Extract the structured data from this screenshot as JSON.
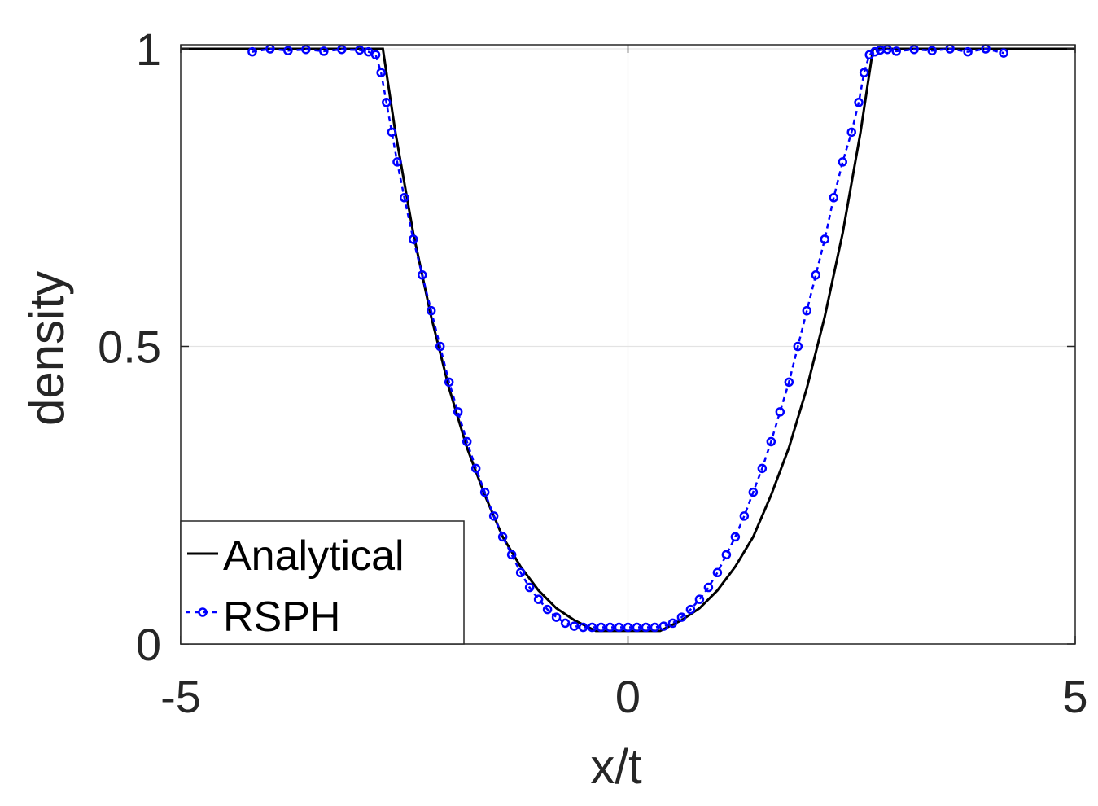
{
  "chart_data": {
    "type": "line",
    "xlabel": "x/t",
    "ylabel": "density",
    "xlim": [
      -5,
      5
    ],
    "ylim": [
      0,
      1
    ],
    "xticks": [
      "-5",
      "0",
      "5"
    ],
    "yticks": [
      "0",
      "0.5",
      "1"
    ],
    "grid": true,
    "legend_position": "bottom-left",
    "series": [
      {
        "name": "Analytical",
        "style": "solid",
        "color": "#000000",
        "x": [
          -5,
          -2.74,
          -2.6,
          -2.4,
          -2.2,
          -2.0,
          -1.8,
          -1.6,
          -1.4,
          -1.2,
          -1.0,
          -0.8,
          -0.6,
          -0.36,
          0.36,
          0.6,
          0.8,
          1.0,
          1.2,
          1.4,
          1.6,
          1.8,
          2.0,
          2.2,
          2.4,
          2.6,
          2.74,
          5
        ],
        "y": [
          1,
          1,
          0.86,
          0.69,
          0.55,
          0.43,
          0.33,
          0.25,
          0.18,
          0.13,
          0.09,
          0.06,
          0.04,
          0.022,
          0.022,
          0.04,
          0.06,
          0.09,
          0.13,
          0.18,
          0.25,
          0.33,
          0.43,
          0.55,
          0.69,
          0.86,
          1,
          1
        ]
      },
      {
        "name": "RSPH",
        "style": "dashed-markers",
        "color": "#0000ff",
        "x": [
          -4.2,
          -4.0,
          -3.8,
          -3.6,
          -3.4,
          -3.2,
          -3.0,
          -2.9,
          -2.82,
          -2.76,
          -2.7,
          -2.64,
          -2.58,
          -2.5,
          -2.4,
          -2.3,
          -2.2,
          -2.1,
          -2.0,
          -1.9,
          -1.8,
          -1.7,
          -1.6,
          -1.5,
          -1.4,
          -1.3,
          -1.2,
          -1.1,
          -1.0,
          -0.9,
          -0.8,
          -0.7,
          -0.6,
          -0.5,
          -0.4,
          -0.3,
          -0.2,
          -0.1,
          0.0,
          0.1,
          0.2,
          0.3,
          0.4,
          0.5,
          0.6,
          0.7,
          0.8,
          0.9,
          1.0,
          1.1,
          1.2,
          1.3,
          1.4,
          1.5,
          1.6,
          1.7,
          1.8,
          1.9,
          2.0,
          2.1,
          2.2,
          2.3,
          2.4,
          2.5,
          2.58,
          2.64,
          2.7,
          2.76,
          2.82,
          2.9,
          3.0,
          3.2,
          3.4,
          3.6,
          3.8,
          4.0,
          4.2
        ],
        "y": [
          0.995,
          1.0,
          0.997,
          0.999,
          0.996,
          0.999,
          0.998,
          0.995,
          0.99,
          0.96,
          0.91,
          0.86,
          0.81,
          0.75,
          0.68,
          0.62,
          0.56,
          0.5,
          0.44,
          0.39,
          0.34,
          0.295,
          0.255,
          0.215,
          0.18,
          0.15,
          0.12,
          0.095,
          0.075,
          0.058,
          0.045,
          0.035,
          0.03,
          0.028,
          0.028,
          0.028,
          0.028,
          0.028,
          0.028,
          0.028,
          0.028,
          0.028,
          0.03,
          0.035,
          0.045,
          0.058,
          0.075,
          0.095,
          0.12,
          0.15,
          0.18,
          0.215,
          0.255,
          0.295,
          0.34,
          0.39,
          0.44,
          0.5,
          0.56,
          0.62,
          0.68,
          0.75,
          0.81,
          0.86,
          0.91,
          0.96,
          0.99,
          0.995,
          0.998,
          0.999,
          0.996,
          0.999,
          0.997,
          1.0,
          0.995,
          1.0,
          0.993
        ]
      }
    ]
  }
}
